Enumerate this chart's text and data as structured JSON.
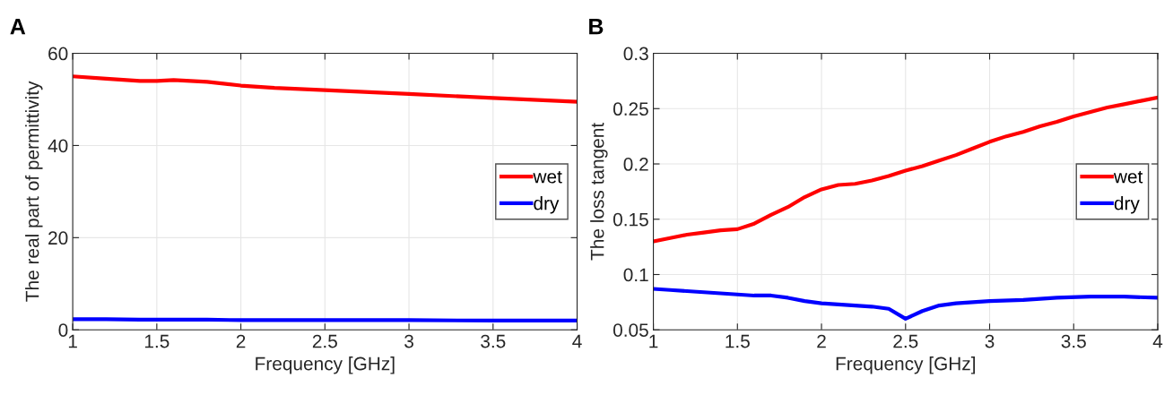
{
  "chart_data": [
    {
      "type": "line",
      "title": "A",
      "xlabel": "Frequency [GHz]",
      "ylabel": "The real part of permittivity",
      "xlim": [
        1,
        4
      ],
      "ylim": [
        0,
        60
      ],
      "xticks": [
        1,
        1.5,
        2,
        2.5,
        3,
        3.5,
        4
      ],
      "yticks": [
        0,
        20,
        40,
        60
      ],
      "grid": true,
      "legend": "right",
      "line_style": "solid",
      "x": [
        1,
        1.2,
        1.4,
        1.5,
        1.6,
        1.8,
        2,
        2.2,
        2.5,
        3,
        3.5,
        4
      ],
      "series": [
        {
          "name": "wet",
          "color": "#ff0000",
          "values": [
            55,
            54.5,
            54,
            54,
            54.2,
            53.8,
            53,
            52.5,
            52,
            51.2,
            50.3,
            49.5
          ]
        },
        {
          "name": "dry",
          "color": "#0000ff",
          "values": [
            2.3,
            2.3,
            2.2,
            2.2,
            2.2,
            2.2,
            2.1,
            2.1,
            2.1,
            2.1,
            2,
            2
          ]
        }
      ]
    },
    {
      "type": "line",
      "title": "B",
      "xlabel": "Frequency [GHz]",
      "ylabel": "The loss tangent",
      "xlim": [
        1,
        4
      ],
      "ylim": [
        0.05,
        0.3
      ],
      "xticks": [
        1,
        1.5,
        2,
        2.5,
        3,
        3.5,
        4
      ],
      "yticks": [
        0.05,
        0.1,
        0.15,
        0.2,
        0.25,
        0.3
      ],
      "grid": true,
      "legend": "right",
      "line_style": "solid",
      "series": [
        {
          "name": "wet",
          "color": "#ff0000",
          "x": [
            1,
            1.1,
            1.2,
            1.3,
            1.4,
            1.5,
            1.6,
            1.7,
            1.8,
            1.9,
            2,
            2.1,
            2.2,
            2.3,
            2.4,
            2.5,
            2.6,
            2.7,
            2.8,
            2.9,
            3,
            3.1,
            3.2,
            3.3,
            3.4,
            3.5,
            3.6,
            3.7,
            3.8,
            3.9,
            4
          ],
          "values": [
            0.13,
            0.133,
            0.136,
            0.138,
            0.14,
            0.141,
            0.146,
            0.154,
            0.161,
            0.17,
            0.177,
            0.181,
            0.182,
            0.185,
            0.189,
            0.194,
            0.198,
            0.203,
            0.208,
            0.214,
            0.22,
            0.225,
            0.229,
            0.234,
            0.238,
            0.243,
            0.247,
            0.251,
            0.254,
            0.257,
            0.26
          ]
        },
        {
          "name": "dry",
          "color": "#0000ff",
          "x": [
            1,
            1.1,
            1.2,
            1.3,
            1.4,
            1.5,
            1.6,
            1.7,
            1.8,
            1.9,
            2,
            2.1,
            2.2,
            2.3,
            2.4,
            2.5,
            2.6,
            2.7,
            2.8,
            2.9,
            3,
            3.2,
            3.4,
            3.6,
            3.8,
            4
          ],
          "values": [
            0.087,
            0.086,
            0.085,
            0.084,
            0.083,
            0.082,
            0.081,
            0.081,
            0.079,
            0.076,
            0.074,
            0.073,
            0.072,
            0.071,
            0.069,
            0.06,
            0.067,
            0.072,
            0.074,
            0.075,
            0.076,
            0.077,
            0.079,
            0.08,
            0.08,
            0.079
          ]
        }
      ]
    }
  ]
}
